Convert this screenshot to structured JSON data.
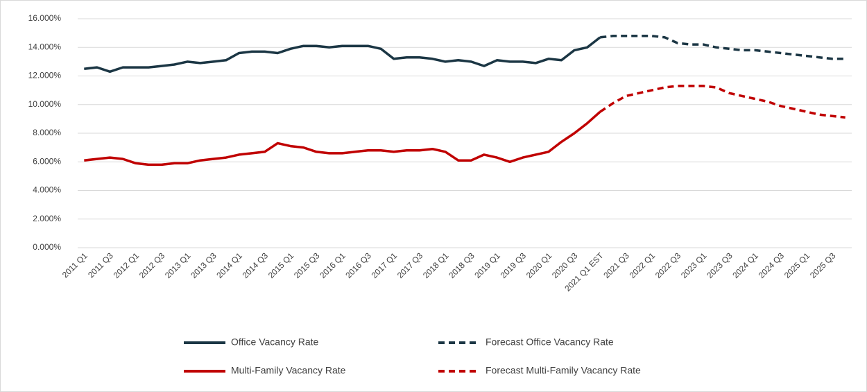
{
  "chart_data": {
    "type": "line",
    "categories": [
      "2011 Q1",
      null,
      "2011 Q3",
      null,
      "2012 Q1",
      null,
      "2012 Q3",
      null,
      "2013 Q1",
      null,
      "2013 Q3",
      null,
      "2014 Q1",
      null,
      "2014 Q3",
      null,
      "2015 Q1",
      null,
      "2015 Q3",
      null,
      "2016 Q1",
      null,
      "2016 Q3",
      null,
      "2017 Q1",
      null,
      "2017 Q3",
      null,
      "2018 Q1",
      null,
      "2018 Q3",
      null,
      "2019 Q1",
      null,
      "2019 Q3",
      null,
      "2020 Q1",
      null,
      "2020 Q3",
      null,
      "2021 Q1 EST",
      null,
      "2021 Q3",
      null,
      "2022 Q1",
      null,
      "2022 Q3",
      null,
      "2023 Q1",
      null,
      "2023 Q3",
      null,
      "2024 Q1",
      null,
      "2024 Q3",
      null,
      "2025 Q1",
      null,
      "2025 Q3",
      null
    ],
    "series": [
      {
        "name": "Office Vacancy Rate",
        "color": "#1b3644",
        "dashed": false,
        "values": [
          12.5,
          12.6,
          12.3,
          12.6,
          12.6,
          12.6,
          12.7,
          12.8,
          13.0,
          12.9,
          13.0,
          13.1,
          13.6,
          13.7,
          13.7,
          13.6,
          13.9,
          14.1,
          14.1,
          14.0,
          14.1,
          14.1,
          14.1,
          13.9,
          13.2,
          13.3,
          13.3,
          13.2,
          13.0,
          13.1,
          13.0,
          12.7,
          13.1,
          13.0,
          13.0,
          12.9,
          13.2,
          13.1,
          13.8,
          14.0,
          14.7,
          null,
          null,
          null,
          null,
          null,
          null,
          null,
          null,
          null,
          null,
          null,
          null,
          null,
          null,
          null,
          null,
          null,
          null,
          null
        ]
      },
      {
        "name": "Forecast Office Vacancy Rate",
        "color": "#1b3644",
        "dashed": true,
        "values": [
          null,
          null,
          null,
          null,
          null,
          null,
          null,
          null,
          null,
          null,
          null,
          null,
          null,
          null,
          null,
          null,
          null,
          null,
          null,
          null,
          null,
          null,
          null,
          null,
          null,
          null,
          null,
          null,
          null,
          null,
          null,
          null,
          null,
          null,
          null,
          null,
          null,
          null,
          null,
          null,
          14.7,
          14.8,
          14.8,
          14.8,
          14.8,
          14.7,
          14.3,
          14.2,
          14.2,
          14.0,
          13.9,
          13.8,
          13.8,
          13.7,
          13.6,
          13.5,
          13.4,
          13.3,
          13.2,
          13.2
        ]
      },
      {
        "name": "Multi-Family Vacancy Rate",
        "color": "#c00000",
        "dashed": false,
        "values": [
          6.1,
          6.2,
          6.3,
          6.2,
          5.9,
          5.8,
          5.8,
          5.9,
          5.9,
          6.1,
          6.2,
          6.3,
          6.5,
          6.6,
          6.7,
          7.3,
          7.1,
          7.0,
          6.7,
          6.6,
          6.6,
          6.7,
          6.8,
          6.8,
          6.7,
          6.8,
          6.8,
          6.9,
          6.7,
          6.1,
          6.1,
          6.5,
          6.3,
          6.0,
          6.3,
          6.5,
          6.7,
          7.4,
          8.0,
          8.7,
          9.5,
          null,
          null,
          null,
          null,
          null,
          null,
          null,
          null,
          null,
          null,
          null,
          null,
          null,
          null,
          null,
          null,
          null,
          null,
          null
        ]
      },
      {
        "name": "Forecast Multi-Family Vacancy Rate",
        "color": "#c00000",
        "dashed": true,
        "values": [
          null,
          null,
          null,
          null,
          null,
          null,
          null,
          null,
          null,
          null,
          null,
          null,
          null,
          null,
          null,
          null,
          null,
          null,
          null,
          null,
          null,
          null,
          null,
          null,
          null,
          null,
          null,
          null,
          null,
          null,
          null,
          null,
          null,
          null,
          null,
          null,
          null,
          null,
          null,
          null,
          9.5,
          10.1,
          10.6,
          10.8,
          11.0,
          11.2,
          11.3,
          11.3,
          11.3,
          11.2,
          10.8,
          10.6,
          10.4,
          10.2,
          9.9,
          9.7,
          9.5,
          9.3,
          9.2,
          9.1
        ]
      }
    ],
    "ylim": [
      0,
      16
    ],
    "yticks": [
      {
        "value": 0,
        "label": "0.000%"
      },
      {
        "value": 2,
        "label": "2.000%"
      },
      {
        "value": 4,
        "label": "4.000%"
      },
      {
        "value": 6,
        "label": "6.000%"
      },
      {
        "value": 8,
        "label": "8.000%"
      },
      {
        "value": 10,
        "label": "10.000%"
      },
      {
        "value": 12,
        "label": "12.000%"
      },
      {
        "value": 14,
        "label": "14.000%"
      },
      {
        "value": 16,
        "label": "16.000%"
      }
    ],
    "grid": true,
    "legend": "bottom"
  }
}
